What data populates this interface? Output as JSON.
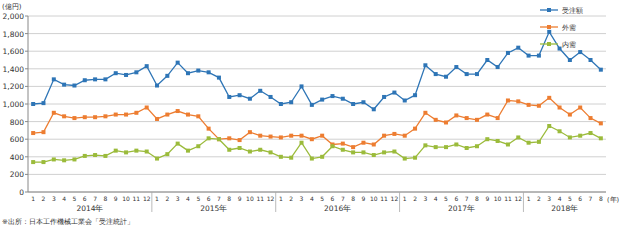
{
  "chart_data": {
    "type": "line",
    "y_label": "(億円)",
    "x_label": "(年)",
    "source": "※出所：日本工作機械工業会「受注統計」",
    "categories": [
      "1",
      "2",
      "3",
      "4",
      "5",
      "6",
      "7",
      "8",
      "9",
      "10",
      "11",
      "12",
      "1",
      "2",
      "3",
      "4",
      "5",
      "6",
      "7",
      "8",
      "9",
      "10",
      "11",
      "12",
      "1",
      "2",
      "3",
      "4",
      "5",
      "6",
      "7",
      "8",
      "9",
      "10",
      "11",
      "12",
      "1",
      "2",
      "3",
      "4",
      "5",
      "6",
      "7",
      "8",
      "9",
      "10",
      "11",
      "12",
      "1",
      "2",
      "3",
      "4",
      "5",
      "6",
      "7",
      "8"
    ],
    "x_groups": [
      "2014年",
      "2015年",
      "2016年",
      "2017年",
      "2018年"
    ],
    "series": [
      {
        "name": "受注額",
        "color": "#2e75b6",
        "marker": "square",
        "values": [
          1000,
          1010,
          1280,
          1220,
          1210,
          1270,
          1280,
          1280,
          1350,
          1330,
          1360,
          1430,
          1210,
          1320,
          1470,
          1350,
          1380,
          1360,
          1300,
          1080,
          1100,
          1060,
          1150,
          1080,
          1000,
          1020,
          1200,
          990,
          1050,
          1090,
          1060,
          1000,
          1020,
          940,
          1080,
          1130,
          1040,
          1100,
          1440,
          1340,
          1310,
          1420,
          1340,
          1340,
          1500,
          1420,
          1580,
          1640,
          1550,
          1550,
          1820,
          1630,
          1500,
          1590,
          1500,
          1390
        ]
      },
      {
        "name": "外需",
        "color": "#ed7d31",
        "marker": "square",
        "values": [
          670,
          680,
          900,
          860,
          840,
          850,
          850,
          860,
          880,
          880,
          900,
          960,
          830,
          880,
          920,
          880,
          860,
          720,
          600,
          610,
          590,
          680,
          640,
          630,
          620,
          640,
          640,
          600,
          640,
          540,
          550,
          510,
          560,
          540,
          640,
          660,
          640,
          720,
          900,
          820,
          790,
          870,
          840,
          820,
          880,
          840,
          1040,
          1030,
          990,
          980,
          1070,
          960,
          880,
          960,
          840,
          780
        ]
      },
      {
        "name": "内需",
        "color": "#9bbb3b",
        "marker": "square",
        "values": [
          340,
          340,
          370,
          360,
          370,
          410,
          420,
          410,
          470,
          450,
          470,
          460,
          380,
          430,
          550,
          470,
          520,
          610,
          600,
          480,
          500,
          460,
          480,
          450,
          400,
          390,
          560,
          380,
          400,
          520,
          480,
          450,
          450,
          420,
          450,
          460,
          380,
          390,
          530,
          510,
          510,
          540,
          500,
          520,
          600,
          580,
          540,
          620,
          560,
          570,
          750,
          690,
          620,
          640,
          670,
          610
        ]
      }
    ],
    "ylim": [
      0,
      2000
    ],
    "yticks": [
      0,
      200,
      400,
      600,
      800,
      {
        "value": 1000,
        "label": "1,000"
      },
      {
        "value": 1200,
        "label": "1,200"
      },
      {
        "value": 1400,
        "label": "1,400"
      },
      {
        "value": 1600,
        "label": "1,600"
      },
      {
        "value": 1800,
        "label": "1,800"
      },
      {
        "value": 2000,
        "label": "2,000"
      }
    ],
    "grid": true,
    "legend": "upper right"
  }
}
